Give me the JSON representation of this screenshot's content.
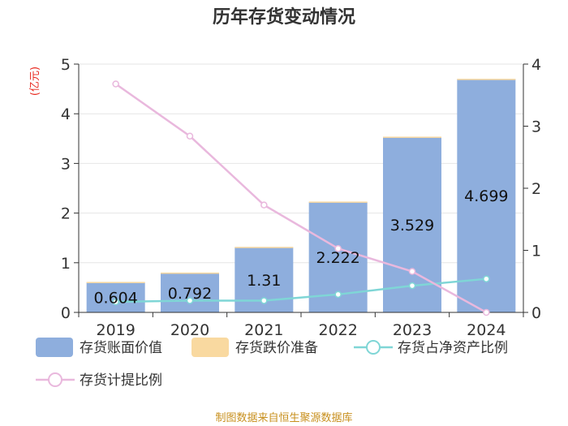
{
  "chart_data": {
    "type": "bar",
    "title": "历年存货变动情况",
    "unit_label": "(亿元)",
    "categories": [
      "2019",
      "2020",
      "2021",
      "2022",
      "2023",
      "2024"
    ],
    "y_left": {
      "min": 0,
      "max": 5,
      "ticks": [
        "0",
        "1",
        "2",
        "3",
        "4",
        "5"
      ]
    },
    "y_right": {
      "min": 0,
      "max": 4,
      "ticks": [
        "0",
        "1",
        "2",
        "3",
        "4"
      ]
    },
    "series": [
      {
        "name": "存货账面价值",
        "kind": "bar",
        "axis": "left",
        "color": "#8eaedd",
        "values": [
          0.604,
          0.792,
          1.31,
          2.222,
          3.529,
          4.699
        ],
        "labels": [
          "0.604",
          "0.792",
          "1.31",
          "2.222",
          "3.529",
          "4.699"
        ]
      },
      {
        "name": "存货跌价准备",
        "kind": "bar",
        "axis": "left",
        "stacked": true,
        "color": "#f9d9a0",
        "values": [
          0.01,
          0.01,
          0.01,
          0.01,
          0.01,
          0.005
        ]
      },
      {
        "name": "存货占净资产比例",
        "kind": "line",
        "axis": "right",
        "color": "#7fd6d6",
        "values": [
          0.17,
          0.19,
          0.19,
          0.29,
          0.43,
          0.54
        ]
      },
      {
        "name": "存货计提比例",
        "kind": "line",
        "axis": "right",
        "color": "#e9b8dd",
        "values": [
          3.68,
          2.84,
          1.73,
          1.03,
          0.66,
          0.0
        ]
      }
    ],
    "grid": true,
    "legend_position": "bottom"
  },
  "source": "制图数据来自恒生聚源数据库"
}
